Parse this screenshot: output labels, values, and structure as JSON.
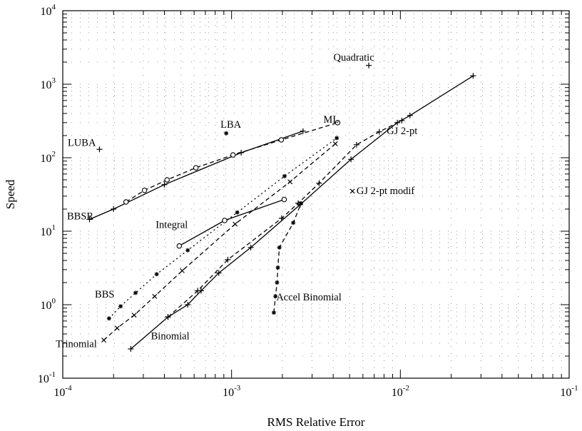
{
  "chart_data": {
    "type": "scatter",
    "xscale": "log",
    "yscale": "log",
    "xlim": [
      0.0001,
      0.1
    ],
    "ylim": [
      0.1,
      10000
    ],
    "xlabel": "RMS Relative Error",
    "ylabel": "Speed",
    "grid": "dotted",
    "x_ticks": [
      {
        "value": 0.0001,
        "base": "10",
        "exp": "-4"
      },
      {
        "value": 0.001,
        "base": "10",
        "exp": "-3"
      },
      {
        "value": 0.01,
        "base": "10",
        "exp": "-2"
      },
      {
        "value": 0.1,
        "base": "10",
        "exp": "-1"
      }
    ],
    "y_ticks": [
      {
        "value": 0.1,
        "base": "10",
        "exp": "-1"
      },
      {
        "value": 1,
        "base": "10",
        "exp": "0"
      },
      {
        "value": 10,
        "base": "10",
        "exp": "1"
      },
      {
        "value": 100,
        "base": "10",
        "exp": "2"
      },
      {
        "value": 1000,
        "base": "10",
        "exp": "3"
      },
      {
        "value": 10000,
        "base": "10",
        "exp": "4"
      }
    ],
    "series": [
      {
        "name": "Quadratic",
        "line": "none",
        "marker": "+",
        "points": [
          [
            0.0065,
            1800
          ]
        ],
        "label_anchor": [
          0.0053,
          2100
        ],
        "label_align": "middle"
      },
      {
        "name": "LUBA",
        "line": "none",
        "marker": "+",
        "points": [
          [
            0.000165,
            130
          ]
        ],
        "label_anchor": [
          0.000107,
          145
        ],
        "label_align": "start"
      },
      {
        "name": "LBA",
        "line": "none",
        "marker": "*",
        "points": [
          [
            0.00093,
            215
          ]
        ],
        "label_anchor": [
          0.00086,
          255
        ],
        "label_align": "start"
      },
      {
        "name": "GJ 2-pt modif",
        "line": "none",
        "marker": "x",
        "points": [
          [
            0.0052,
            35
          ]
        ],
        "label_anchor": [
          0.0055,
          32
        ],
        "label_align": "start"
      },
      {
        "name": "ML",
        "line": "dashed",
        "marker": "o",
        "points": [
          [
            0.000237,
            25
          ],
          [
            0.000305,
            36
          ],
          [
            0.000415,
            50
          ],
          [
            0.000615,
            73
          ],
          [
            0.00102,
            109
          ],
          [
            0.00197,
            175
          ],
          [
            0.00425,
            300
          ]
        ],
        "label_anchor": [
          0.0035,
          300
        ],
        "label_align": "start"
      },
      {
        "name": "BBSR",
        "line": "solid",
        "marker": "+",
        "points": [
          [
            0.000144,
            14.5
          ],
          [
            0.0002,
            20
          ],
          [
            0.0004,
            43
          ],
          [
            0.00114,
            117
          ],
          [
            0.00265,
            230
          ]
        ],
        "label_anchor": [
          0.000106,
          14.5
        ],
        "label_align": "start"
      },
      {
        "name": "GJ 2-pt",
        "line": "solid",
        "marker": "+",
        "points": [
          [
            0.000253,
            0.25
          ],
          [
            0.00042,
            0.68
          ],
          [
            0.00055,
            1
          ],
          [
            0.00066,
            1.55
          ],
          [
            0.00084,
            2.7
          ],
          [
            0.0013,
            6
          ],
          [
            0.00255,
            23
          ],
          [
            0.0051,
            95
          ],
          [
            0.0096,
            300
          ],
          [
            0.0114,
            375
          ],
          [
            0.027,
            1300
          ]
        ],
        "label_anchor": [
          0.0083,
          210
        ],
        "label_align": "start"
      },
      {
        "name": "Integral",
        "line": "solid",
        "marker": "o",
        "points": [
          [
            0.00049,
            6.3
          ],
          [
            0.00091,
            14
          ],
          [
            0.00205,
            27
          ]
        ],
        "label_anchor": [
          0.000355,
          11
        ],
        "label_align": "start"
      },
      {
        "name": "BBS",
        "line": "dotted",
        "marker": "*",
        "points": [
          [
            0.000188,
            0.65
          ],
          [
            0.00022,
            0.95
          ],
          [
            0.00027,
            1.45
          ],
          [
            0.00036,
            2.6
          ],
          [
            0.00055,
            5.5
          ],
          [
            0.00108,
            18
          ],
          [
            0.00206,
            56
          ],
          [
            0.0042,
            185
          ]
        ],
        "label_anchor": [
          0.000155,
          1.25
        ],
        "label_align": "start"
      },
      {
        "name": "Trinomial",
        "line": "dashed",
        "marker": "x",
        "points": [
          [
            0.000175,
            0.33
          ],
          [
            0.00021,
            0.48
          ],
          [
            0.000265,
            0.72
          ],
          [
            0.00035,
            1.3
          ],
          [
            0.00051,
            2.9
          ],
          [
            0.00105,
            12.5
          ],
          [
            0.00222,
            47
          ],
          [
            0.00412,
            155
          ]
        ],
        "label_anchor": [
          9.1e-05,
          0.265
        ],
        "label_align": "start"
      },
      {
        "name": "Binomial",
        "line": "dashed",
        "marker": "+",
        "points": [
          [
            0.00042,
            0.68
          ],
          [
            0.00063,
            1.55
          ],
          [
            0.00095,
            4.1
          ],
          [
            0.00198,
            15
          ],
          [
            0.00248,
            24
          ],
          [
            0.0033,
            45
          ],
          [
            0.0055,
            150
          ],
          [
            0.0075,
            225
          ],
          [
            0.0102,
            320
          ]
        ],
        "label_anchor": [
          0.000333,
          0.34
        ],
        "label_align": "start"
      },
      {
        "name": "Accel Binomial",
        "line": "dashed",
        "marker": "*",
        "points": [
          [
            0.00178,
            0.78
          ],
          [
            0.00182,
            1.3
          ],
          [
            0.00186,
            2.0
          ],
          [
            0.00188,
            3.2
          ],
          [
            0.00192,
            6.0
          ],
          [
            0.00232,
            13
          ],
          [
            0.00258,
            24
          ]
        ],
        "label_anchor": [
          0.00184,
          1.14
        ],
        "label_align": "start"
      }
    ]
  }
}
